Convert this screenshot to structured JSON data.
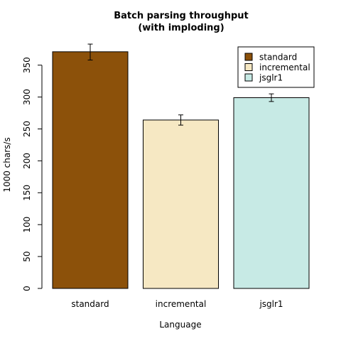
{
  "chart_data": {
    "type": "bar",
    "title": "Batch parsing throughput",
    "subtitle": "(with imploding)",
    "xlabel": "Language",
    "ylabel": "1000 chars/s",
    "categories": [
      "standard",
      "incremental",
      "jsglr1"
    ],
    "values": [
      371,
      264,
      299
    ],
    "errors": [
      {
        "low": 358,
        "high": 383
      },
      {
        "low": 256,
        "high": 272
      },
      {
        "low": 293,
        "high": 305
      }
    ],
    "colors": [
      "#8c510a",
      "#f6e8c3",
      "#c7eae5"
    ],
    "ylim": [
      0,
      380
    ],
    "yticks": [
      0,
      50,
      100,
      150,
      200,
      250,
      300,
      350
    ],
    "legend": {
      "position": "top-right",
      "items": [
        "standard",
        "incremental",
        "jsglr1"
      ]
    },
    "grid": false
  }
}
